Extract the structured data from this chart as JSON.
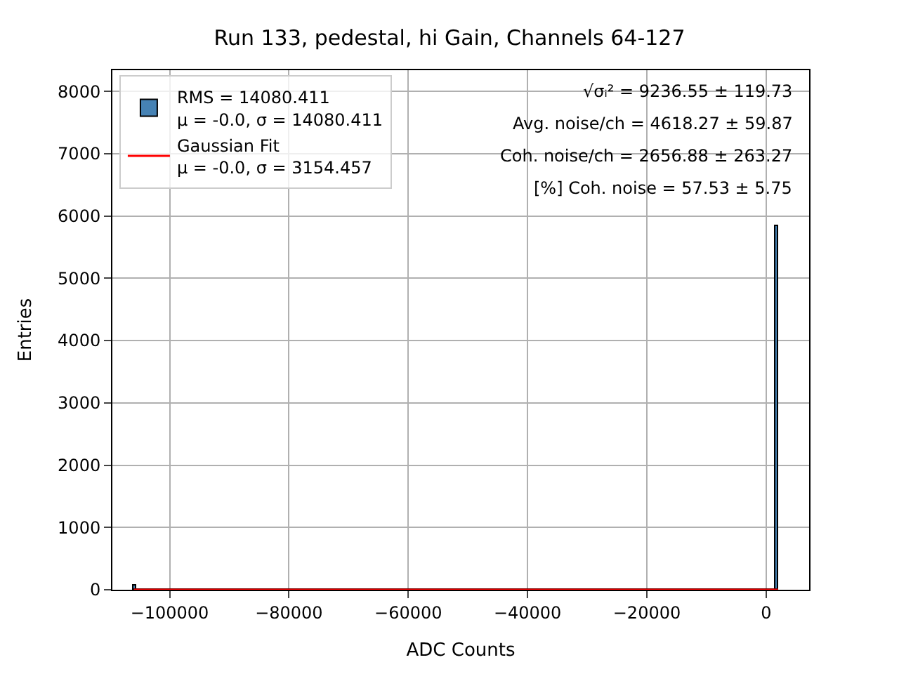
{
  "chart_data": {
    "type": "histogram",
    "title": "Run 133, pedestal, hi Gain, Channels 64-127",
    "xlabel": "ADC Counts",
    "ylabel": "Entries",
    "series": [
      {
        "name": "RMS = 14080.411\nμ = -0.0, σ = 14080.411",
        "color": "#4682b4",
        "bins": [
          -106000,
          -105500,
          1500,
          2000
        ],
        "values": [
          60,
          0,
          5830
        ]
      },
      {
        "name": "Gaussian Fit\nμ = -0.0, σ = 3154.457",
        "type": "line",
        "color": "#ff0000",
        "x": [
          -106000,
          2000
        ],
        "values": [
          0,
          0
        ]
      }
    ],
    "annotations": [
      "√σᵢ² = 9236.55 ± 119.73",
      "Avg. noise/ch = 4618.27 ± 59.87",
      "Coh. noise/ch = 2656.88 ± 263.27",
      "[%] Coh. noise = 57.53 ± 5.75"
    ],
    "xlim": [
      -109600,
      7200
    ],
    "ylim": [
      0,
      8340
    ],
    "xticks": [
      {
        "value": -100000,
        "label": "−100000"
      },
      {
        "value": -80000,
        "label": "−80000"
      },
      {
        "value": -60000,
        "label": "−60000"
      },
      {
        "value": -40000,
        "label": "−40000"
      },
      {
        "value": -20000,
        "label": "−20000"
      },
      0
    ],
    "yticks": [
      0,
      1000,
      2000,
      3000,
      4000,
      5000,
      6000,
      7000,
      8000
    ],
    "grid": true,
    "legend": "top left"
  }
}
